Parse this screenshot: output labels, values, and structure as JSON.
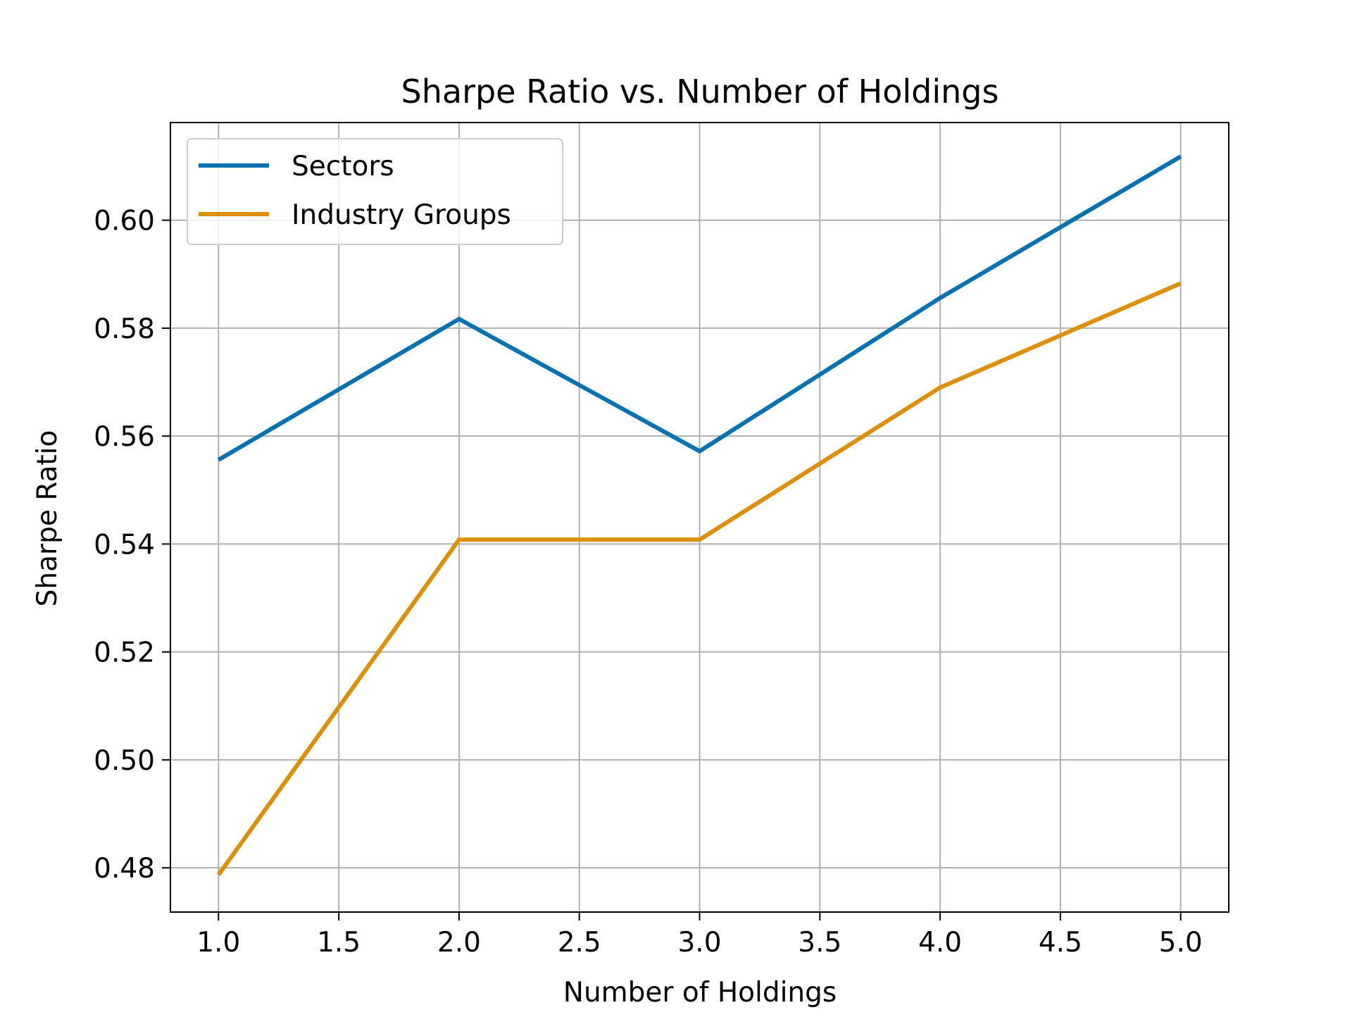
{
  "chart_data": {
    "type": "line",
    "title": "Sharpe Ratio vs. Number of Holdings",
    "xlabel": "Number of Holdings",
    "ylabel": "Sharpe Ratio",
    "x": [
      1,
      2,
      3,
      4,
      5
    ],
    "xlim": [
      0.8,
      5.2
    ],
    "ylim": [
      0.4718,
      0.6181
    ],
    "xticks": [
      1.0,
      1.5,
      2.0,
      2.5,
      3.0,
      3.5,
      4.0,
      4.5,
      5.0
    ],
    "xtick_labels": [
      "1.0",
      "1.5",
      "2.0",
      "2.5",
      "3.0",
      "3.5",
      "4.0",
      "4.5",
      "5.0"
    ],
    "yticks": [
      0.48,
      0.5,
      0.52,
      0.54,
      0.56,
      0.58,
      0.6
    ],
    "ytick_labels": [
      "0.48",
      "0.50",
      "0.52",
      "0.54",
      "0.56",
      "0.58",
      "0.60"
    ],
    "grid": true,
    "legend_position": "upper-left",
    "series": [
      {
        "name": "Sectors",
        "color": "#0072b2",
        "values": [
          0.5556,
          0.5817,
          0.5572,
          0.5856,
          0.6118
        ]
      },
      {
        "name": "Industry Groups",
        "color": "#de8f05",
        "values": [
          0.4787,
          0.5408,
          0.5408,
          0.569,
          0.5883
        ]
      }
    ]
  }
}
